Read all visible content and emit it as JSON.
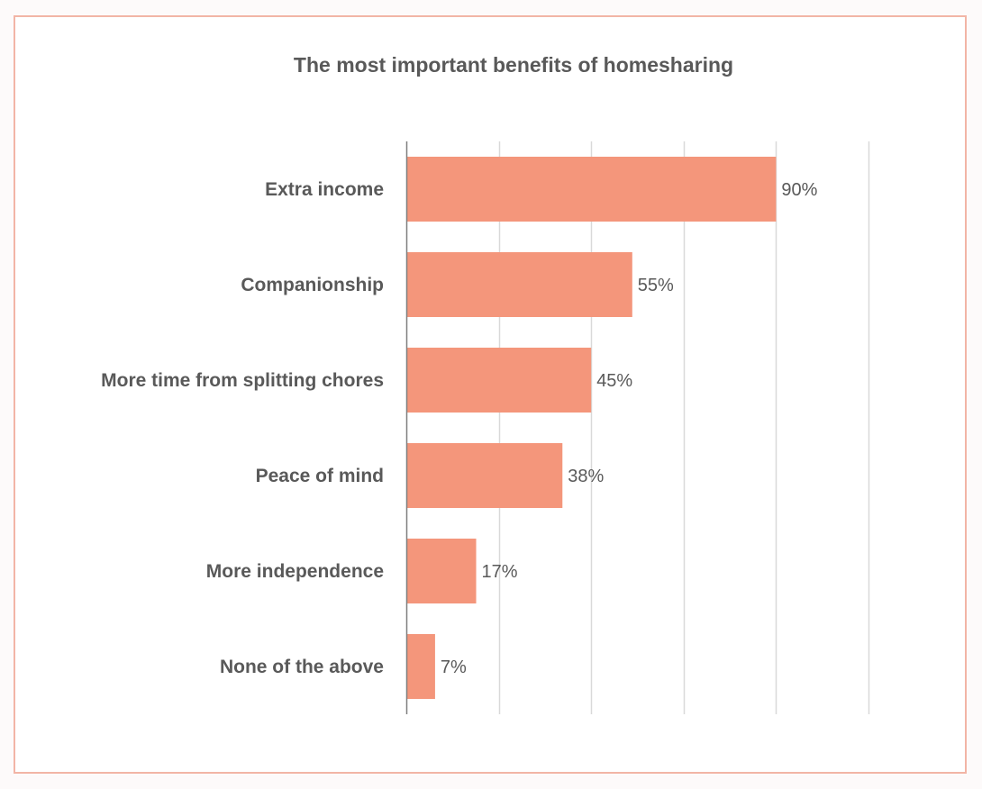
{
  "chart_data": {
    "type": "bar",
    "orientation": "horizontal",
    "title": "The most important benefits of homesharing",
    "categories": [
      "Extra income",
      "Companionship",
      "More time from splitting chores",
      "Peace of mind",
      "More independence",
      "None of the above"
    ],
    "values": [
      90,
      55,
      45,
      38,
      17,
      7
    ],
    "data_labels": [
      "90%",
      "55%",
      "45%",
      "38%",
      "17%",
      "7%"
    ],
    "value_unit": "%",
    "xlim": [
      0,
      112.5
    ],
    "gridlines_at": [
      0,
      22.5,
      45,
      67.5,
      90,
      112.5
    ],
    "grid": true,
    "legend": "none",
    "bar_color": "#f4967b",
    "grid_color": "#d9d9d9",
    "frame_color": "#f2b5a6",
    "text_color": "#595959"
  }
}
